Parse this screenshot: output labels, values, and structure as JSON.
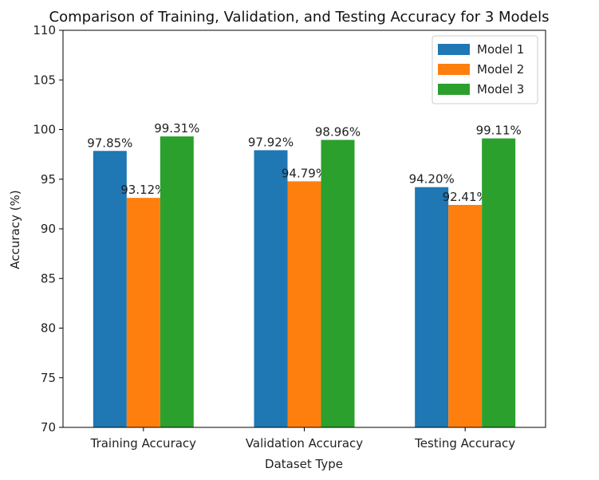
{
  "chart_data": {
    "type": "bar",
    "title": "Comparison of Training, Validation, and Testing Accuracy for 3 Models",
    "xlabel": "Dataset Type",
    "ylabel": "Accuracy (%)",
    "ylim": [
      70,
      110
    ],
    "yticks": [
      70,
      75,
      80,
      85,
      90,
      95,
      100,
      105,
      110
    ],
    "categories": [
      "Training Accuracy",
      "Validation Accuracy",
      "Testing Accuracy"
    ],
    "series": [
      {
        "name": "Model 1",
        "color": "#1f77b4",
        "values": [
          97.85,
          97.92,
          94.2
        ],
        "labels": [
          "97.85%",
          "97.92%",
          "94.20%"
        ]
      },
      {
        "name": "Model 2",
        "color": "#ff7f0e",
        "values": [
          93.12,
          94.79,
          92.41
        ],
        "labels": [
          "93.12%",
          "94.79%",
          "92.41%"
        ]
      },
      {
        "name": "Model 3",
        "color": "#2ca02c",
        "values": [
          99.31,
          98.96,
          99.11
        ],
        "labels": [
          "99.31%",
          "98.96%",
          "99.11%"
        ]
      }
    ],
    "legend_position": "top-right",
    "grid": false
  }
}
